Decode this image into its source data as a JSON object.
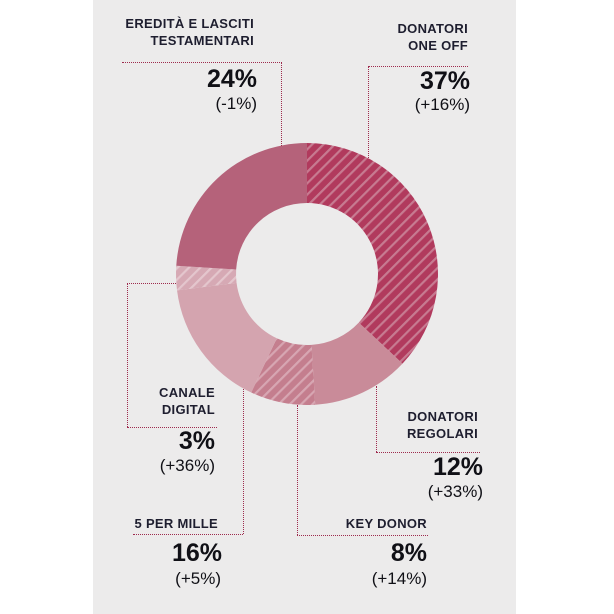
{
  "theme": {
    "panel_background": "#ecebeb",
    "page_background": "#ffffff",
    "dotted_line_color": "#9e2b4e",
    "label_color": "#1e1e2f",
    "number_color": "#101016"
  },
  "chart_data": {
    "type": "pie",
    "variant": "donut",
    "unit": "%",
    "start_angle_deg": 0,
    "direction": "clockwise",
    "inner_radius_ratio": 0.54,
    "segments": [
      {
        "name": "donatori-one-off",
        "label": "DONATORI ONE OFF",
        "value": 37,
        "change": "+16%",
        "color": "#b13a5d",
        "hatched": true,
        "stripe_color": "#c77b91"
      },
      {
        "name": "donatori-regolari",
        "label": "DONATORI REGOLARI",
        "value": 12,
        "change": "+33%",
        "color": "#c98b99",
        "hatched": false
      },
      {
        "name": "key-donor",
        "label": "KEY DONOR",
        "value": 8,
        "change": "+14%",
        "color": "#c47e8e",
        "hatched": true,
        "stripe_color": "#d7a6b2"
      },
      {
        "name": "cinque-per-mille",
        "label": "5 PER MILLE",
        "value": 16,
        "change": "+5%",
        "color": "#d4a4af",
        "hatched": false
      },
      {
        "name": "canale-digital",
        "label": "CANALE DIGITAL",
        "value": 3,
        "change": "+36%",
        "color": "#d6a9b4",
        "hatched": true,
        "stripe_color": "#e4c6cd"
      },
      {
        "name": "eredita-lasciti",
        "label": "EREDITÀ E LASCITI TESTAMENTARI",
        "value": 24,
        "change": "-1%",
        "color": "#b5627a",
        "hatched": false
      }
    ]
  },
  "callouts": {
    "eredita": {
      "line1": "EREDITÀ E LASCITI",
      "line2": "TESTAMENTARI",
      "value": "24%",
      "change": "(-1%)"
    },
    "one_off": {
      "line1": "DONATORI",
      "line2": "ONE OFF",
      "value": "37%",
      "change": "(+16%)"
    },
    "regolari": {
      "line1": "DONATORI",
      "line2": "REGOLARI",
      "value": "12%",
      "change": "(+33%)"
    },
    "key_donor": {
      "line1": "KEY DONOR",
      "value": "8%",
      "change": "(+14%)"
    },
    "cinque": {
      "line1": "5 PER MILLE",
      "value": "16%",
      "change": "(+5%)"
    },
    "canale": {
      "line1": "CANALE",
      "line2": "DIGITAL",
      "value": "3%",
      "change": "(+36%)"
    }
  }
}
